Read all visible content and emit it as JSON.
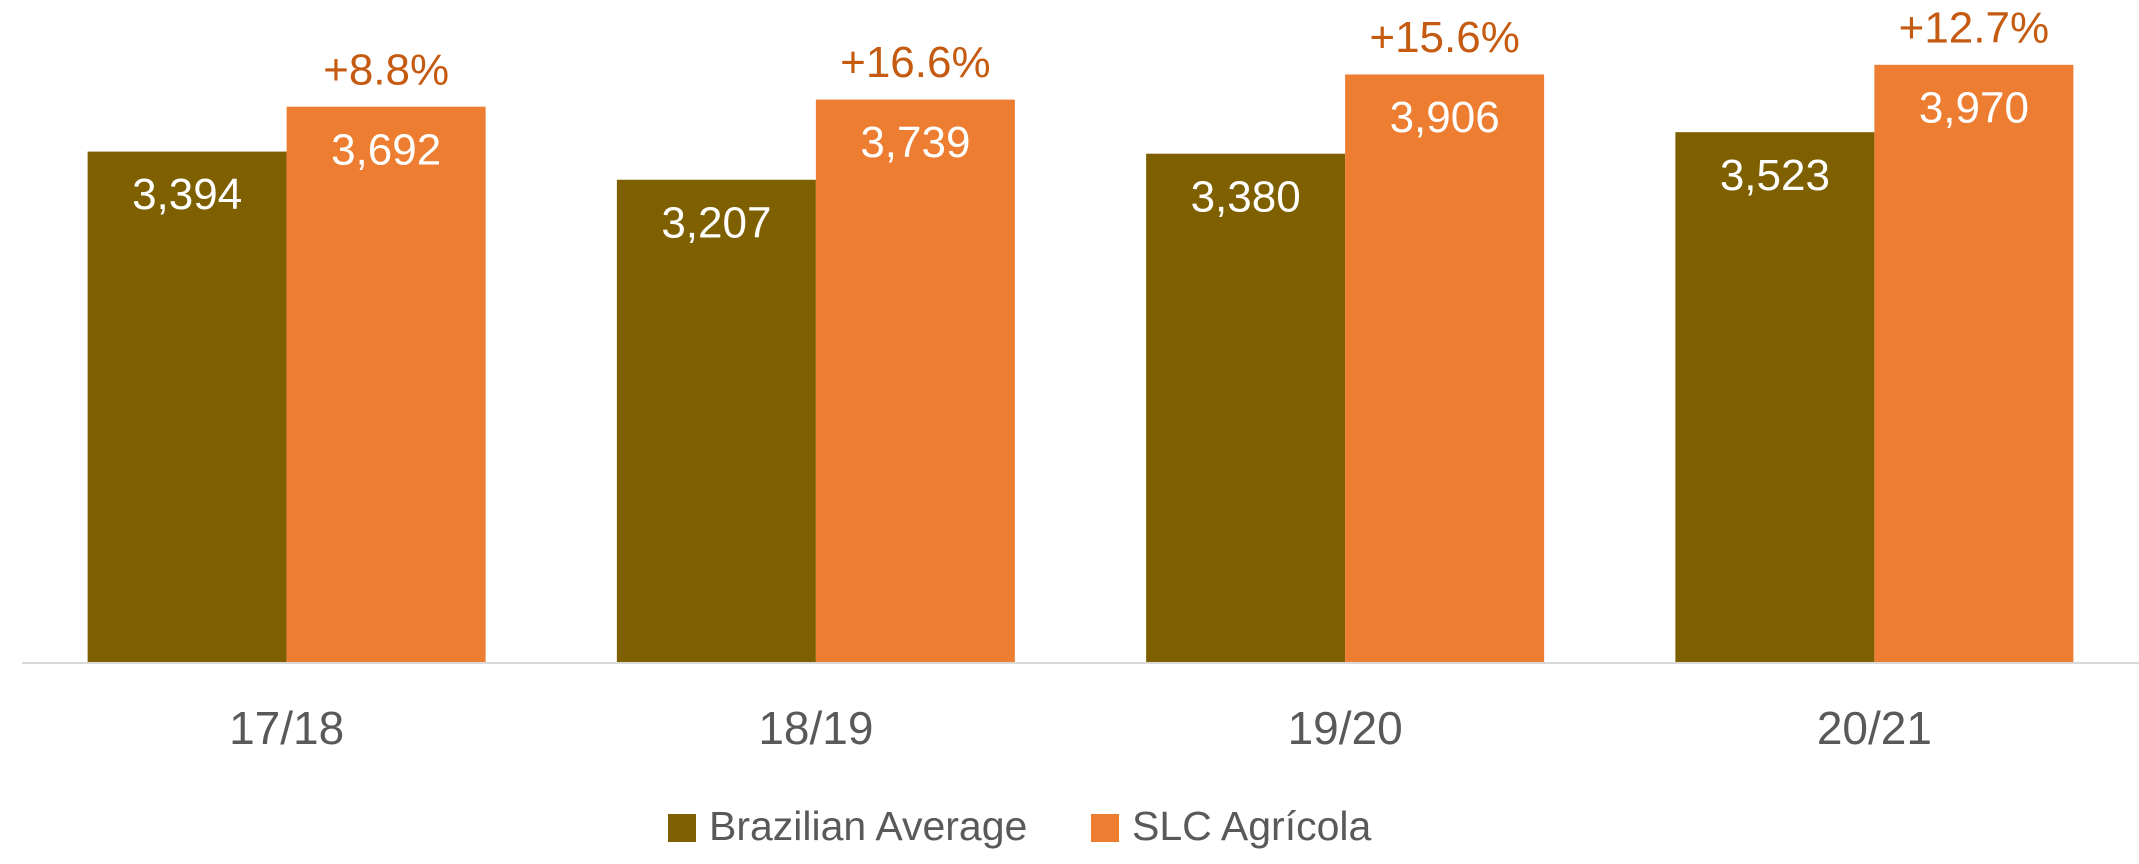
{
  "chart_data": {
    "type": "bar",
    "categories": [
      "17/18",
      "18/19",
      "19/20",
      "20/21"
    ],
    "series": [
      {
        "name": "Brazilian Average",
        "color": "#7f6000",
        "values": [
          3394,
          3207,
          3380,
          3523
        ],
        "value_labels": [
          "3,394",
          "3,207",
          "3,380",
          "3,523"
        ]
      },
      {
        "name": "SLC Agrícola",
        "color": "#ed7d31",
        "values": [
          3692,
          3739,
          3906,
          3970
        ],
        "value_labels": [
          "3,692",
          "3,739",
          "3,906",
          "3,970"
        ]
      }
    ],
    "annotations": [
      "+8.8%",
      "+16.6%",
      "+15.6%",
      "+12.7%"
    ],
    "annotation_color": "#c55a11",
    "ylim": [
      0,
      4400
    ],
    "legend": "bottom"
  }
}
